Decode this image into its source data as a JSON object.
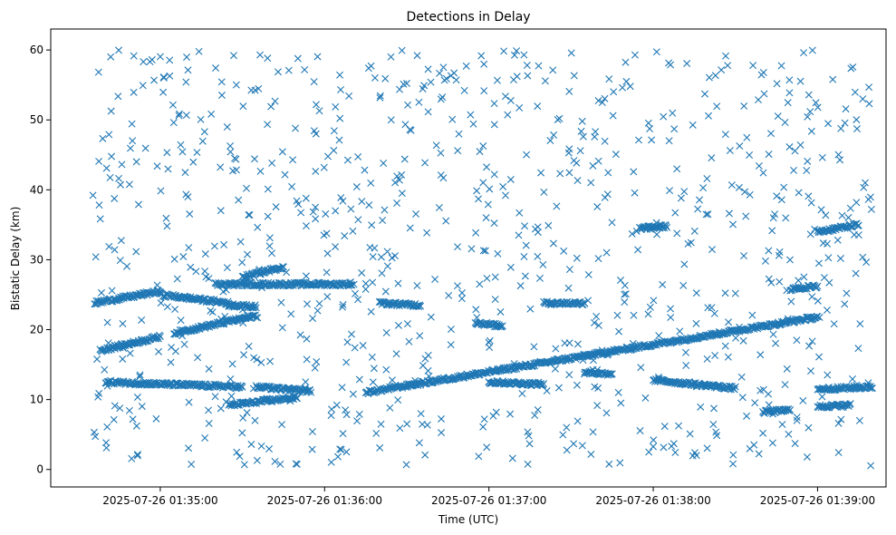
{
  "chart_data": {
    "type": "scatter",
    "title": "Detections in Delay",
    "xlabel": "Time (UTC)",
    "ylabel": "Bistatic Delay (km)",
    "xlim": [
      "2025-07-26 01:34:20",
      "2025-07-26 01:39:25"
    ],
    "ylim": [
      -2.5,
      63
    ],
    "x_ticks": [
      "2025-07-26 01:35:00",
      "2025-07-26 01:36:00",
      "2025-07-26 01:37:00",
      "2025-07-26 01:38:00",
      "2025-07-26 01:39:00"
    ],
    "y_ticks": [
      0,
      10,
      20,
      30,
      40,
      50,
      60
    ],
    "grid": false,
    "marker": "x",
    "marker_color": "#1f77b4",
    "tracks": [
      {
        "x_start": "2025-07-26 01:34:36",
        "x_end": "2025-07-26 01:35:00",
        "y_start": 23.8,
        "y_end": 25.5
      },
      {
        "x_start": "2025-07-26 01:35:00",
        "x_end": "2025-07-26 01:35:25",
        "y_start": 25.0,
        "y_end": 23.8
      },
      {
        "x_start": "2025-07-26 01:34:38",
        "x_end": "2025-07-26 01:35:00",
        "y_start": 17.0,
        "y_end": 19.0
      },
      {
        "x_start": "2025-07-26 01:35:05",
        "x_end": "2025-07-26 01:35:35",
        "y_start": 19.5,
        "y_end": 22.0
      },
      {
        "x_start": "2025-07-26 01:34:40",
        "x_end": "2025-07-26 01:35:30",
        "y_start": 12.5,
        "y_end": 11.8
      },
      {
        "x_start": "2025-07-26 01:35:25",
        "x_end": "2025-07-26 01:35:50",
        "y_start": 9.2,
        "y_end": 10.3
      },
      {
        "x_start": "2025-07-26 01:35:30",
        "x_end": "2025-07-26 01:35:45",
        "y_start": 27.5,
        "y_end": 29.0
      },
      {
        "x_start": "2025-07-26 01:35:20",
        "x_end": "2025-07-26 01:36:10",
        "y_start": 26.5,
        "y_end": 26.5
      },
      {
        "x_start": "2025-07-26 01:35:25",
        "x_end": "2025-07-26 01:35:35",
        "y_start": 23.5,
        "y_end": 23.3
      },
      {
        "x_start": "2025-07-26 01:35:35",
        "x_end": "2025-07-26 01:35:55",
        "y_start": 11.8,
        "y_end": 11.2
      },
      {
        "x_start": "2025-07-26 01:36:15",
        "x_end": "2025-07-26 01:39:00",
        "y_start": 11.0,
        "y_end": 21.8
      },
      {
        "x_start": "2025-07-26 01:36:20",
        "x_end": "2025-07-26 01:36:35",
        "y_start": 23.8,
        "y_end": 23.5
      },
      {
        "x_start": "2025-07-26 01:36:55",
        "x_end": "2025-07-26 01:37:05",
        "y_start": 21.0,
        "y_end": 20.5
      },
      {
        "x_start": "2025-07-26 01:37:00",
        "x_end": "2025-07-26 01:37:20",
        "y_start": 12.5,
        "y_end": 12.2
      },
      {
        "x_start": "2025-07-26 01:37:20",
        "x_end": "2025-07-26 01:37:35",
        "y_start": 23.8,
        "y_end": 23.8
      },
      {
        "x_start": "2025-07-26 01:37:35",
        "x_end": "2025-07-26 01:37:45",
        "y_start": 14.0,
        "y_end": 13.5
      },
      {
        "x_start": "2025-07-26 01:37:55",
        "x_end": "2025-07-26 01:38:05",
        "y_start": 34.5,
        "y_end": 34.8
      },
      {
        "x_start": "2025-07-26 01:38:00",
        "x_end": "2025-07-26 01:38:30",
        "y_start": 12.8,
        "y_end": 11.6
      },
      {
        "x_start": "2025-07-26 01:38:40",
        "x_end": "2025-07-26 01:38:50",
        "y_start": 8.2,
        "y_end": 8.5
      },
      {
        "x_start": "2025-07-26 01:38:50",
        "x_end": "2025-07-26 01:39:00",
        "y_start": 25.8,
        "y_end": 26.2
      },
      {
        "x_start": "2025-07-26 01:39:00",
        "x_end": "2025-07-26 01:39:20",
        "y_start": 11.5,
        "y_end": 11.8
      },
      {
        "x_start": "2025-07-26 01:39:00",
        "x_end": "2025-07-26 01:39:12",
        "y_start": 9.0,
        "y_end": 9.2
      },
      {
        "x_start": "2025-07-26 01:39:00",
        "x_end": "2025-07-26 01:39:15",
        "y_start": 34.0,
        "y_end": 35.0
      }
    ],
    "clutter": {
      "x_start": "2025-07-26 01:34:35",
      "x_end": "2025-07-26 01:39:20",
      "y_min": 0.5,
      "y_max": 60
    }
  }
}
